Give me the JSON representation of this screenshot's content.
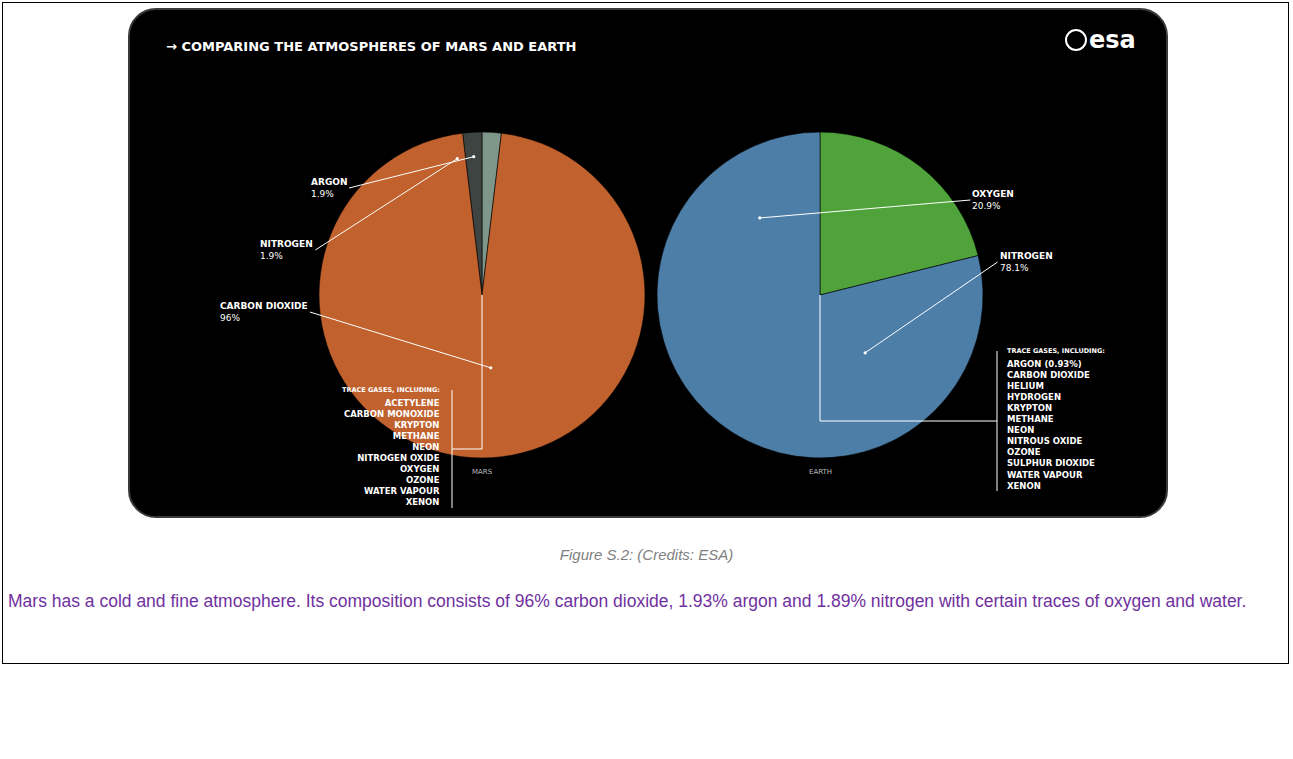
{
  "figure": {
    "title": "→ COMPARING THE ATMOSPHERES OF MARS AND EARTH",
    "logo": "esa",
    "caption": "Figure S.2: (Credits: ESA)",
    "text": "Mars has a cold and fine atmosphere. Its composition consists of 96% carbon dioxide, 1.93% argon and 1.89% nitrogen with certain traces of oxygen and water."
  },
  "chart_data": [
    {
      "type": "pie",
      "title": "MARS",
      "categories": [
        "ARGON",
        "NITROGEN",
        "CARBON DIOXIDE"
      ],
      "values": [
        1.9,
        1.9,
        96
      ],
      "value_labels": [
        "1.9%",
        "1.9%",
        "96%"
      ],
      "data_labels": true,
      "colors": [
        "#7f968a",
        "#3d4441",
        "#c0612e"
      ],
      "annotation": {
        "heading": "TRACE GASES, INCLUDING:",
        "items": [
          "ACETYLENE",
          "CARBON MONOXIDE",
          "KRYPTON",
          "METHANE",
          "NEON",
          "NITROGEN OXIDE",
          "OXYGEN",
          "OZONE",
          "WATER VAPOUR",
          "XENON"
        ]
      }
    },
    {
      "type": "pie",
      "title": "EARTH",
      "categories": [
        "OXYGEN",
        "NITROGEN"
      ],
      "values": [
        20.9,
        78.1
      ],
      "value_labels": [
        "20.9%",
        "78.1%"
      ],
      "data_labels": true,
      "colors": [
        "#4fa33a",
        "#4d7ea8"
      ],
      "annotation": {
        "heading": "TRACE GASES, INCLUDING:",
        "items": [
          "ARGON (0.93%)",
          "CARBON DIOXIDE",
          "HELIUM",
          "HYDROGEN",
          "KRYPTON",
          "METHANE",
          "NEON",
          "NITROUS OXIDE",
          "OZONE",
          "SULPHUR DIOXIDE",
          "WATER VAPOUR",
          "XENON"
        ]
      }
    }
  ]
}
